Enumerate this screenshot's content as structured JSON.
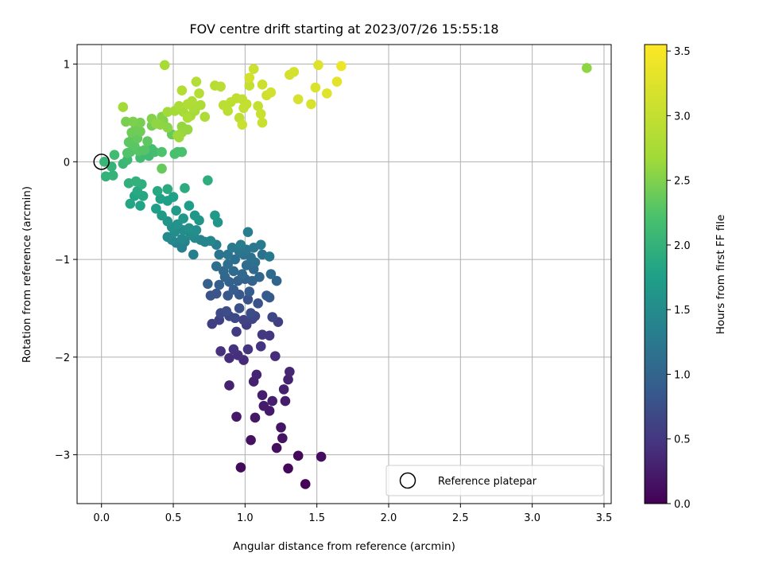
{
  "chart_data": {
    "type": "scatter",
    "title": "FOV centre drift starting at 2023/07/26 15:55:18",
    "xlabel": "Angular distance from reference (arcmin)",
    "ylabel": "Rotation from reference (arcmin)",
    "xlim": [
      -0.17,
      3.55
    ],
    "ylim": [
      -3.5,
      1.2
    ],
    "xticks": [
      0.0,
      0.5,
      1.0,
      1.5,
      2.0,
      2.5,
      3.0,
      3.5
    ],
    "xtick_labels": [
      "0.0",
      "0.5",
      "1.0",
      "1.5",
      "2.0",
      "2.5",
      "3.0",
      "3.5"
    ],
    "yticks": [
      1,
      0,
      -1,
      -2,
      -3
    ],
    "ytick_labels": [
      "1",
      "0",
      "−1",
      "−2",
      "−3"
    ],
    "grid": true,
    "colormap": "viridis",
    "colorbar": {
      "label": "Hours from first FF file",
      "range": [
        0.0,
        3.55
      ],
      "ticks": [
        0.0,
        0.5,
        1.0,
        1.5,
        2.0,
        2.5,
        3.0,
        3.5
      ],
      "tick_labels": [
        "0.0",
        "0.5",
        "1.0",
        "1.5",
        "2.0",
        "2.5",
        "3.0",
        "3.5"
      ]
    },
    "legend": {
      "position": "lower right",
      "entries": [
        "Reference platepar"
      ]
    },
    "reference_point": {
      "x": 0.0,
      "y": 0.0
    },
    "points": [
      [
        1.42,
        -3.3,
        0.03
      ],
      [
        1.3,
        -3.14,
        0.06
      ],
      [
        1.37,
        -3.01,
        0.07
      ],
      [
        0.97,
        -3.13,
        0.09
      ],
      [
        1.53,
        -3.02,
        0.11
      ],
      [
        1.22,
        -2.93,
        0.13
      ],
      [
        1.04,
        -2.85,
        0.15
      ],
      [
        1.26,
        -2.83,
        0.16
      ],
      [
        1.25,
        -2.72,
        0.18
      ],
      [
        1.07,
        -2.62,
        0.2
      ],
      [
        0.94,
        -2.61,
        0.21
      ],
      [
        1.17,
        -2.55,
        0.22
      ],
      [
        1.13,
        -2.5,
        0.23
      ],
      [
        1.28,
        -2.45,
        0.25
      ],
      [
        1.19,
        -2.45,
        0.26
      ],
      [
        1.12,
        -2.39,
        0.27
      ],
      [
        1.27,
        -2.33,
        0.28
      ],
      [
        0.89,
        -2.29,
        0.29
      ],
      [
        1.06,
        -2.25,
        0.3
      ],
      [
        1.3,
        -2.23,
        0.31
      ],
      [
        1.08,
        -2.18,
        0.33
      ],
      [
        1.31,
        -2.15,
        0.34
      ],
      [
        0.99,
        -2.03,
        0.38
      ],
      [
        1.21,
        -1.99,
        0.4
      ],
      [
        0.89,
        -2.01,
        0.41
      ],
      [
        0.95,
        -1.98,
        0.43
      ],
      [
        0.83,
        -1.94,
        0.44
      ],
      [
        0.92,
        -1.92,
        0.45
      ],
      [
        1.11,
        -1.89,
        0.47
      ],
      [
        1.02,
        -1.92,
        0.48
      ],
      [
        1.17,
        -1.78,
        0.5
      ],
      [
        1.12,
        -1.77,
        0.52
      ],
      [
        0.94,
        -1.74,
        0.54
      ],
      [
        1.01,
        -1.67,
        0.55
      ],
      [
        1.23,
        -1.64,
        0.57
      ],
      [
        0.77,
        -1.66,
        0.58
      ],
      [
        0.82,
        -1.62,
        0.6
      ],
      [
        0.99,
        -1.62,
        0.61
      ],
      [
        1.05,
        -1.61,
        0.63
      ],
      [
        1.07,
        -1.58,
        0.64
      ],
      [
        1.19,
        -1.59,
        0.66
      ],
      [
        0.89,
        -1.58,
        0.67
      ],
      [
        0.93,
        -1.6,
        0.69
      ],
      [
        0.83,
        -1.55,
        0.7
      ],
      [
        1.04,
        -1.55,
        0.72
      ],
      [
        0.87,
        -1.53,
        0.73
      ],
      [
        0.96,
        -1.5,
        0.75
      ],
      [
        1.09,
        -1.45,
        0.77
      ],
      [
        1.02,
        -1.41,
        0.78
      ],
      [
        0.76,
        -1.37,
        0.8
      ],
      [
        0.8,
        -1.35,
        0.81
      ],
      [
        0.88,
        -1.37,
        0.83
      ],
      [
        0.96,
        -1.36,
        0.84
      ],
      [
        1.15,
        -1.37,
        0.86
      ],
      [
        1.17,
        -1.39,
        0.87
      ],
      [
        1.03,
        -1.33,
        0.89
      ],
      [
        0.92,
        -1.31,
        0.9
      ],
      [
        0.74,
        -1.25,
        0.92
      ],
      [
        0.82,
        -1.26,
        0.93
      ],
      [
        0.89,
        -1.23,
        0.95
      ],
      [
        0.95,
        -1.22,
        0.96
      ],
      [
        1.0,
        -1.2,
        0.98
      ],
      [
        1.05,
        -1.22,
        0.99
      ],
      [
        1.22,
        -1.22,
        1.0
      ],
      [
        1.1,
        -1.18,
        1.01
      ],
      [
        0.86,
        -1.18,
        1.02
      ],
      [
        0.98,
        -1.15,
        1.04
      ],
      [
        0.85,
        -1.12,
        1.05
      ],
      [
        0.92,
        -1.12,
        1.06
      ],
      [
        1.06,
        -1.1,
        1.07
      ],
      [
        1.18,
        -1.15,
        1.08
      ],
      [
        1.01,
        -1.06,
        1.09
      ],
      [
        0.8,
        -1.07,
        1.1
      ],
      [
        0.88,
        -1.05,
        1.12
      ],
      [
        1.07,
        -1.03,
        1.13
      ],
      [
        0.93,
        -1.0,
        1.14
      ],
      [
        1.04,
        -0.98,
        1.15
      ],
      [
        0.99,
        -0.95,
        1.16
      ],
      [
        1.12,
        -0.95,
        1.17
      ],
      [
        0.82,
        -0.95,
        1.18
      ],
      [
        0.88,
        -0.95,
        1.2
      ],
      [
        0.96,
        -0.92,
        1.21
      ],
      [
        1.01,
        -0.9,
        1.22
      ],
      [
        1.06,
        -0.88,
        1.23
      ],
      [
        0.91,
        -0.88,
        1.25
      ],
      [
        1.17,
        -0.97,
        1.26
      ],
      [
        1.11,
        -0.85,
        1.27
      ],
      [
        0.97,
        -0.85,
        1.28
      ],
      [
        0.8,
        -0.85,
        1.3
      ],
      [
        1.02,
        -0.72,
        1.32
      ],
      [
        0.64,
        -0.95,
        1.33
      ],
      [
        0.56,
        -0.88,
        1.35
      ],
      [
        0.52,
        -0.83,
        1.36
      ],
      [
        0.58,
        -0.82,
        1.38
      ],
      [
        0.69,
        -0.8,
        1.4
      ],
      [
        0.72,
        -0.82,
        1.41
      ],
      [
        0.76,
        -0.81,
        1.42
      ],
      [
        0.49,
        -0.8,
        1.43
      ],
      [
        0.56,
        -0.79,
        1.45
      ],
      [
        0.65,
        -0.78,
        1.46
      ],
      [
        0.46,
        -0.77,
        1.48
      ],
      [
        0.62,
        -0.75,
        1.49
      ],
      [
        0.51,
        -0.72,
        1.5
      ],
      [
        0.57,
        -0.7,
        1.52
      ],
      [
        0.66,
        -0.7,
        1.53
      ],
      [
        0.49,
        -0.67,
        1.55
      ],
      [
        0.61,
        -0.68,
        1.56
      ],
      [
        0.53,
        -0.64,
        1.58
      ],
      [
        0.46,
        -0.61,
        1.6
      ],
      [
        0.81,
        -0.62,
        1.61
      ],
      [
        0.68,
        -0.6,
        1.62
      ],
      [
        0.57,
        -0.58,
        1.64
      ],
      [
        0.65,
        -0.55,
        1.65
      ],
      [
        0.79,
        -0.55,
        1.67
      ],
      [
        0.42,
        -0.55,
        1.68
      ],
      [
        0.52,
        -0.5,
        1.7
      ],
      [
        0.61,
        -0.45,
        1.72
      ],
      [
        0.38,
        -0.48,
        1.73
      ],
      [
        0.46,
        -0.4,
        1.75
      ],
      [
        0.41,
        -0.38,
        1.76
      ],
      [
        0.5,
        -0.36,
        1.78
      ],
      [
        0.27,
        -0.45,
        1.8
      ],
      [
        0.23,
        -0.35,
        1.81
      ],
      [
        0.2,
        -0.43,
        1.83
      ],
      [
        0.29,
        -0.35,
        1.85
      ],
      [
        0.39,
        -0.3,
        1.87
      ],
      [
        0.25,
        -0.3,
        1.88
      ],
      [
        0.46,
        -0.28,
        1.9
      ],
      [
        0.58,
        -0.27,
        1.92
      ],
      [
        0.74,
        -0.19,
        1.94
      ],
      [
        0.28,
        -0.23,
        1.95
      ],
      [
        0.19,
        -0.22,
        1.97
      ],
      [
        0.24,
        -0.2,
        1.98
      ],
      [
        0.03,
        -0.15,
        2.0
      ],
      [
        0.08,
        -0.14,
        2.01
      ],
      [
        0.07,
        -0.05,
        2.03
      ],
      [
        0.02,
        0.0,
        2.05
      ],
      [
        0.15,
        -0.02,
        2.07
      ],
      [
        0.18,
        0.02,
        2.09
      ],
      [
        0.33,
        0.06,
        2.11
      ],
      [
        0.09,
        0.07,
        2.13
      ],
      [
        0.27,
        0.04,
        2.14
      ],
      [
        0.37,
        0.1,
        2.16
      ],
      [
        0.35,
        0.13,
        2.17
      ],
      [
        0.51,
        0.08,
        2.19
      ],
      [
        0.53,
        0.1,
        2.2
      ],
      [
        0.56,
        0.1,
        2.21
      ],
      [
        0.42,
        0.1,
        2.23
      ],
      [
        0.2,
        0.1,
        2.25
      ],
      [
        0.18,
        0.09,
        2.26
      ],
      [
        0.26,
        0.11,
        2.27
      ],
      [
        0.3,
        0.12,
        2.28
      ],
      [
        0.23,
        0.16,
        2.3
      ],
      [
        0.19,
        0.2,
        2.31
      ],
      [
        0.32,
        0.21,
        2.32
      ],
      [
        0.22,
        0.25,
        2.33
      ],
      [
        0.25,
        0.24,
        2.35
      ],
      [
        0.42,
        -0.07,
        2.36
      ],
      [
        0.49,
        0.28,
        2.38
      ],
      [
        0.21,
        0.3,
        2.4
      ],
      [
        0.27,
        0.31,
        2.41
      ],
      [
        0.24,
        0.35,
        2.42
      ],
      [
        0.35,
        0.37,
        2.44
      ],
      [
        0.27,
        0.4,
        2.45
      ],
      [
        0.17,
        0.41,
        2.46
      ],
      [
        0.22,
        0.41,
        2.48
      ],
      [
        0.43,
        0.42,
        2.5
      ],
      [
        0.35,
        0.44,
        2.52
      ],
      [
        0.42,
        0.46,
        2.53
      ],
      [
        0.46,
        0.35,
        2.55
      ],
      [
        0.41,
        0.38,
        2.57
      ],
      [
        0.38,
        0.39,
        2.58
      ],
      [
        0.56,
        0.36,
        2.6
      ],
      [
        0.6,
        0.33,
        2.61
      ],
      [
        0.56,
        0.3,
        2.62
      ],
      [
        0.53,
        0.27,
        2.64
      ],
      [
        0.54,
        0.25,
        2.65
      ],
      [
        0.15,
        0.56,
        2.67
      ],
      [
        0.46,
        0.51,
        2.68
      ],
      [
        0.51,
        0.52,
        2.7
      ],
      [
        0.57,
        0.51,
        2.72
      ],
      [
        0.62,
        0.47,
        2.73
      ],
      [
        0.65,
        0.52,
        2.74
      ],
      [
        0.44,
        0.99,
        2.75
      ],
      [
        0.54,
        0.57,
        2.76
      ],
      [
        0.64,
        0.55,
        2.77
      ],
      [
        0.6,
        0.45,
        2.78
      ],
      [
        0.69,
        0.58,
        2.79
      ],
      [
        0.72,
        0.46,
        2.8
      ],
      [
        0.63,
        0.62,
        2.81
      ],
      [
        0.6,
        0.59,
        2.82
      ],
      [
        0.56,
        0.73,
        2.84
      ],
      [
        0.66,
        0.82,
        2.85
      ],
      [
        0.68,
        0.7,
        2.87
      ],
      [
        0.79,
        0.78,
        2.88
      ],
      [
        0.83,
        0.77,
        2.9
      ],
      [
        0.85,
        0.58,
        2.91
      ],
      [
        0.88,
        0.52,
        2.92
      ],
      [
        0.9,
        0.61,
        2.93
      ],
      [
        0.96,
        0.45,
        2.95
      ],
      [
        0.94,
        0.65,
        2.96
      ],
      [
        0.98,
        0.64,
        2.97
      ],
      [
        0.99,
        0.55,
        2.99
      ],
      [
        1.01,
        0.59,
        3.0
      ],
      [
        1.03,
        0.78,
        3.01
      ],
      [
        1.09,
        0.57,
        3.02
      ],
      [
        1.11,
        0.49,
        3.04
      ],
      [
        1.12,
        0.4,
        3.05
      ],
      [
        0.98,
        0.38,
        3.06
      ],
      [
        1.06,
        0.95,
        3.08
      ],
      [
        1.12,
        0.79,
        3.09
      ],
      [
        1.15,
        0.68,
        3.1
      ],
      [
        1.18,
        0.71,
        3.12
      ],
      [
        1.03,
        0.86,
        3.13
      ],
      [
        1.31,
        0.89,
        3.15
      ],
      [
        1.34,
        0.92,
        3.16
      ],
      [
        1.37,
        0.64,
        3.18
      ],
      [
        1.46,
        0.59,
        3.2
      ],
      [
        1.49,
        0.76,
        3.22
      ],
      [
        1.51,
        0.99,
        3.24
      ],
      [
        1.57,
        0.7,
        3.26
      ],
      [
        1.64,
        0.82,
        3.3
      ],
      [
        1.67,
        0.98,
        3.4
      ],
      [
        3.38,
        0.96,
        2.57
      ]
    ]
  }
}
